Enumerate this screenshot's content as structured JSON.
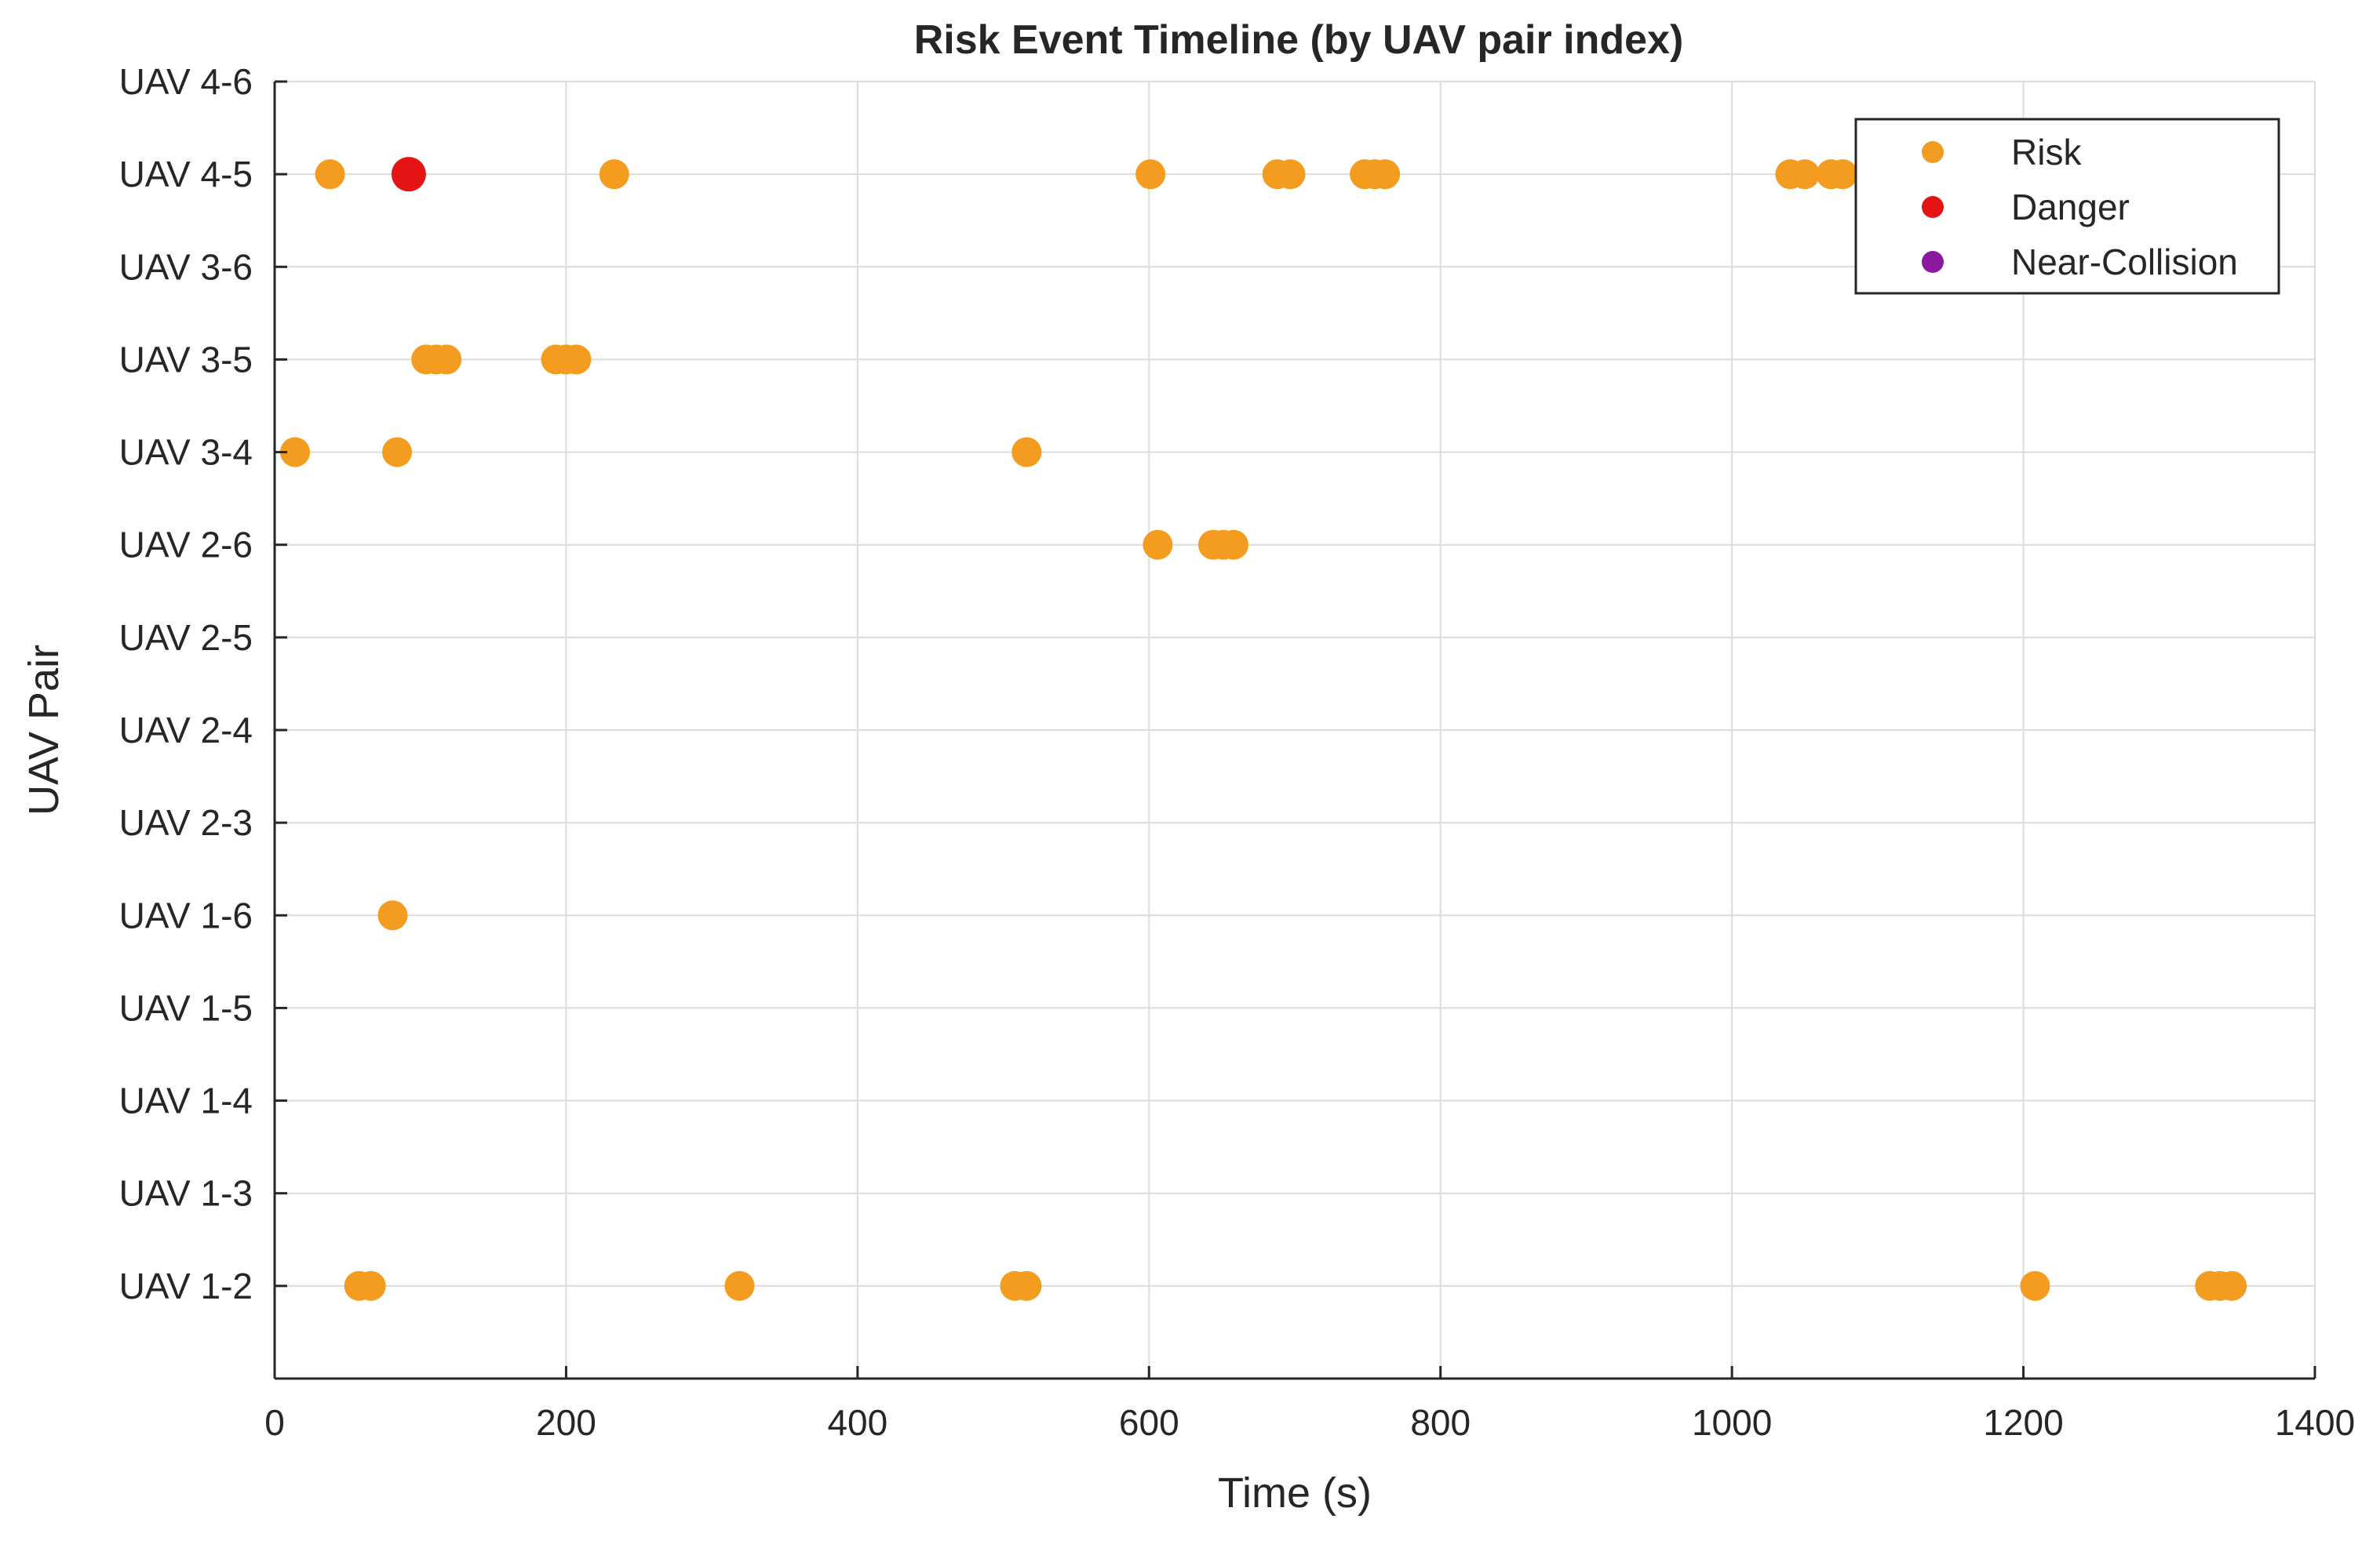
{
  "chart_data": {
    "type": "scatter",
    "title": "Risk Event Timeline (by UAV pair index)",
    "xlabel": "Time (s)",
    "ylabel": "UAV Pair",
    "xlim": [
      0,
      1400
    ],
    "ylim": [
      0,
      14
    ],
    "xticks": [
      0,
      200,
      400,
      600,
      800,
      1000,
      1200,
      1400
    ],
    "xtick_labels": [
      "0",
      "200",
      "400",
      "600",
      "800",
      "1000",
      "1200",
      "1400"
    ],
    "categories": [
      "UAV 1-2",
      "UAV 1-3",
      "UAV 1-4",
      "UAV 1-5",
      "UAV 1-6",
      "UAV 2-3",
      "UAV 2-4",
      "UAV 2-5",
      "UAV 2-6",
      "UAV 3-4",
      "UAV 3-5",
      "UAV 3-6",
      "UAV 4-5",
      "UAV 4-6"
    ],
    "grid": true,
    "legend_position": "top-right",
    "series": [
      {
        "name": "Risk",
        "color": "#f39c1f",
        "points": [
          {
            "x": 38,
            "pair": "UAV 4-5"
          },
          {
            "x": 233,
            "pair": "UAV 4-5"
          },
          {
            "x": 601,
            "pair": "UAV 4-5"
          },
          {
            "x": 688,
            "pair": "UAV 4-5"
          },
          {
            "x": 697,
            "pair": "UAV 4-5"
          },
          {
            "x": 748,
            "pair": "UAV 4-5"
          },
          {
            "x": 755,
            "pair": "UAV 4-5"
          },
          {
            "x": 762,
            "pair": "UAV 4-5"
          },
          {
            "x": 1040,
            "pair": "UAV 4-5"
          },
          {
            "x": 1050,
            "pair": "UAV 4-5"
          },
          {
            "x": 1068,
            "pair": "UAV 4-5"
          },
          {
            "x": 1076,
            "pair": "UAV 4-5"
          },
          {
            "x": 104,
            "pair": "UAV 3-5"
          },
          {
            "x": 111,
            "pair": "UAV 3-5"
          },
          {
            "x": 118,
            "pair": "UAV 3-5"
          },
          {
            "x": 193,
            "pair": "UAV 3-5"
          },
          {
            "x": 200,
            "pair": "UAV 3-5"
          },
          {
            "x": 207,
            "pair": "UAV 3-5"
          },
          {
            "x": 14,
            "pair": "UAV 3-4"
          },
          {
            "x": 84,
            "pair": "UAV 3-4"
          },
          {
            "x": 516,
            "pair": "UAV 3-4"
          },
          {
            "x": 606,
            "pair": "UAV 2-6"
          },
          {
            "x": 644,
            "pair": "UAV 2-6"
          },
          {
            "x": 651,
            "pair": "UAV 2-6"
          },
          {
            "x": 658,
            "pair": "UAV 2-6"
          },
          {
            "x": 81,
            "pair": "UAV 1-6"
          },
          {
            "x": 58,
            "pair": "UAV 1-2"
          },
          {
            "x": 66,
            "pair": "UAV 1-2"
          },
          {
            "x": 319,
            "pair": "UAV 1-2"
          },
          {
            "x": 508,
            "pair": "UAV 1-2"
          },
          {
            "x": 516,
            "pair": "UAV 1-2"
          },
          {
            "x": 1208,
            "pair": "UAV 1-2"
          },
          {
            "x": 1328,
            "pair": "UAV 1-2"
          },
          {
            "x": 1335,
            "pair": "UAV 1-2"
          },
          {
            "x": 1343,
            "pair": "UAV 1-2"
          }
        ]
      },
      {
        "name": "Danger",
        "color": "#e41414",
        "points": [
          {
            "x": 92,
            "pair": "UAV 4-5"
          }
        ]
      },
      {
        "name": "Near-Collision",
        "color": "#8b1a9e",
        "points": []
      }
    ]
  }
}
